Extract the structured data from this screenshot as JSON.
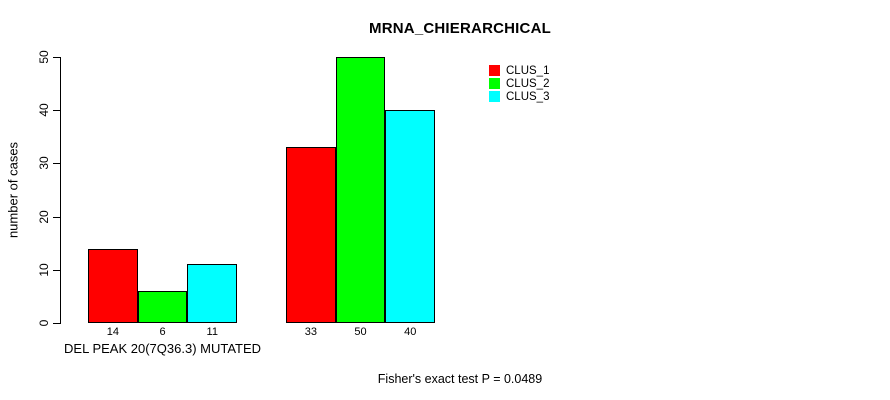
{
  "chart_data": {
    "type": "bar",
    "title": "MRNA_CHIERARCHICAL",
    "ylabel": "number of cases",
    "xlabel": "",
    "ylim": [
      0,
      50
    ],
    "yticks": [
      0,
      10,
      20,
      30,
      40,
      50
    ],
    "grid": false,
    "legend_position": "top-right",
    "categories": [
      "DEL PEAK 20(7Q36.3) MUTATED",
      ""
    ],
    "series": [
      {
        "name": "CLUS_1",
        "color": "#ff0000",
        "values": [
          14,
          33
        ]
      },
      {
        "name": "CLUS_2",
        "color": "#00ff00",
        "values": [
          6,
          50
        ]
      },
      {
        "name": "CLUS_3",
        "color": "#00ffff",
        "values": [
          11,
          40
        ]
      }
    ],
    "bar_value_labels": [
      [
        14,
        6,
        11
      ],
      [
        33,
        50,
        40
      ]
    ],
    "annotation": "Fisher's exact test P = 0.0489"
  },
  "colors": {
    "axis": "#000000",
    "background": "#ffffff",
    "text": "#000000"
  }
}
